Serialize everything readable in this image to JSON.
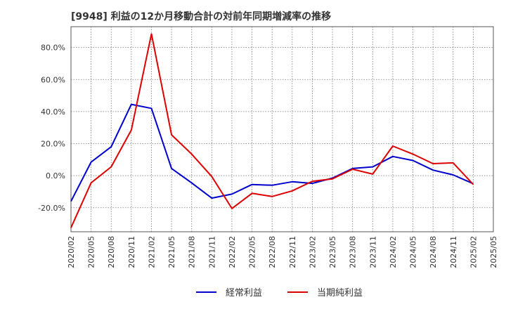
{
  "chart_data": {
    "type": "line",
    "title": "[9948]  利益の12か月移動合計の対前年同期増減率の推移",
    "xlabel": "",
    "ylabel": "",
    "ylim": [
      -35,
      93
    ],
    "yticks": [
      -20,
      0,
      20,
      40,
      60,
      80
    ],
    "ytick_labels": [
      "-20.0%",
      "0.0%",
      "20.0%",
      "40.0%",
      "60.0%",
      "80.0%"
    ],
    "categories": [
      "2020/02",
      "2020/05",
      "2020/08",
      "2020/11",
      "2021/02",
      "2021/05",
      "2021/08",
      "2021/11",
      "2022/02",
      "2022/05",
      "2022/08",
      "2022/11",
      "2023/02",
      "2023/05",
      "2023/08",
      "2023/11",
      "2024/02",
      "2024/05",
      "2024/08",
      "2024/11",
      "2025/02",
      "2025/05"
    ],
    "grid": true,
    "legend_position": "bottom",
    "series": [
      {
        "name": "経常利益",
        "color": "#0000cc",
        "points": [
          {
            "x": "2020/02",
            "y": -16
          },
          {
            "x": "2020/05",
            "y": 8.5
          },
          {
            "x": "2020/08",
            "y": 18
          },
          {
            "x": "2020/11",
            "y": 44.5
          },
          {
            "x": "2021/02",
            "y": 42
          },
          {
            "x": "2021/05",
            "y": 4.5
          },
          {
            "x": "2021/08",
            "y": -4.5
          },
          {
            "x": "2021/11",
            "y": -14
          },
          {
            "x": "2022/02",
            "y": -11.5
          },
          {
            "x": "2022/05",
            "y": -5.5
          },
          {
            "x": "2022/08",
            "y": -6
          },
          {
            "x": "2022/11",
            "y": -3.8
          },
          {
            "x": "2023/02",
            "y": -4.8
          },
          {
            "x": "2023/05",
            "y": -1.5
          },
          {
            "x": "2023/08",
            "y": 4.5
          },
          {
            "x": "2023/11",
            "y": 5.5
          },
          {
            "x": "2024/02",
            "y": 12
          },
          {
            "x": "2024/05",
            "y": 9.5
          },
          {
            "x": "2024/08",
            "y": 3.5
          },
          {
            "x": "2024/11",
            "y": 0.5
          },
          {
            "x": "2025/02",
            "y": -5
          }
        ]
      },
      {
        "name": "当期純利益",
        "color": "#dd0000",
        "points": [
          {
            "x": "2020/02",
            "y": -32.5
          },
          {
            "x": "2020/05",
            "y": -4.5
          },
          {
            "x": "2020/08",
            "y": 5.5
          },
          {
            "x": "2020/11",
            "y": 28.5
          },
          {
            "x": "2021/02",
            "y": 88.5
          },
          {
            "x": "2021/05",
            "y": 25.5
          },
          {
            "x": "2021/08",
            "y": 13.5
          },
          {
            "x": "2021/11",
            "y": -0.5
          },
          {
            "x": "2022/02",
            "y": -20.5
          },
          {
            "x": "2022/05",
            "y": -11
          },
          {
            "x": "2022/08",
            "y": -13
          },
          {
            "x": "2022/11",
            "y": -9.5
          },
          {
            "x": "2023/02",
            "y": -3.5
          },
          {
            "x": "2023/05",
            "y": -2
          },
          {
            "x": "2023/08",
            "y": 4
          },
          {
            "x": "2023/11",
            "y": 1
          },
          {
            "x": "2024/02",
            "y": 18.5
          },
          {
            "x": "2024/05",
            "y": 13.5
          },
          {
            "x": "2024/08",
            "y": 7.5
          },
          {
            "x": "2024/11",
            "y": 8
          },
          {
            "x": "2025/02",
            "y": -5.5
          }
        ]
      }
    ]
  }
}
